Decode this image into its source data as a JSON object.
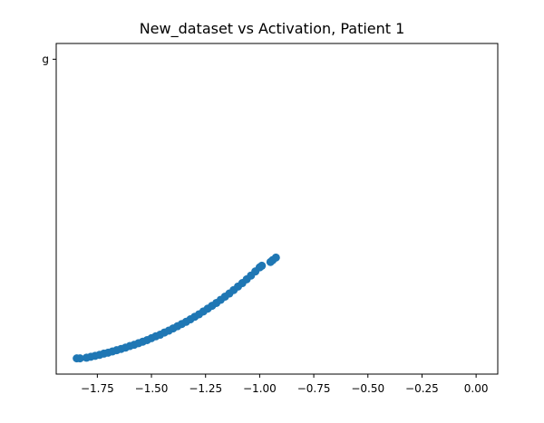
{
  "chart_data": {
    "type": "scatter",
    "title": "New_dataset vs Activation, Patient 1",
    "xlabel": "",
    "ylabel": "",
    "xlim": [
      -1.94,
      0.1
    ],
    "ylim": [
      -0.05,
      1.0
    ],
    "x_ticks": [
      -1.75,
      -1.5,
      -1.25,
      -1.0,
      -0.75,
      -0.5,
      -0.25,
      0.0
    ],
    "x_tick_labels": [
      "−1.75",
      "−1.50",
      "−1.25",
      "−1.00",
      "−0.75",
      "−0.50",
      "−0.25",
      "0.00"
    ],
    "y_ticks": [
      0.95
    ],
    "y_tick_labels": [
      "g"
    ],
    "color": "#1f77b4",
    "marker": "circle",
    "grid": false,
    "series": [
      {
        "x": [
          -1.845,
          -1.83,
          -1.8,
          -1.78,
          -1.76,
          -1.74,
          -1.72,
          -1.7,
          -1.68,
          -1.66,
          -1.64,
          -1.62,
          -1.6,
          -1.58,
          -1.56,
          -1.54,
          -1.52,
          -1.5,
          -1.48,
          -1.46,
          -1.44,
          -1.42,
          -1.4,
          -1.38,
          -1.36,
          -1.34,
          -1.32,
          -1.3,
          -1.28,
          -1.26,
          -1.24,
          -1.22,
          -1.2,
          -1.18,
          -1.16,
          -1.14,
          -1.12,
          -1.1,
          -1.08,
          -1.06,
          -1.04,
          -1.02,
          -1.0,
          -0.99,
          -0.95,
          -0.94,
          -0.925
        ],
        "y": [
          0.0,
          0.0,
          0.002,
          0.005,
          0.008,
          0.011,
          0.015,
          0.018,
          0.022,
          0.026,
          0.03,
          0.034,
          0.039,
          0.043,
          0.048,
          0.053,
          0.058,
          0.064,
          0.07,
          0.075,
          0.082,
          0.088,
          0.095,
          0.102,
          0.109,
          0.116,
          0.124,
          0.132,
          0.14,
          0.149,
          0.158,
          0.167,
          0.176,
          0.186,
          0.196,
          0.206,
          0.217,
          0.228,
          0.239,
          0.251,
          0.263,
          0.276,
          0.289,
          0.294,
          0.306,
          0.312,
          0.32
        ]
      }
    ]
  }
}
